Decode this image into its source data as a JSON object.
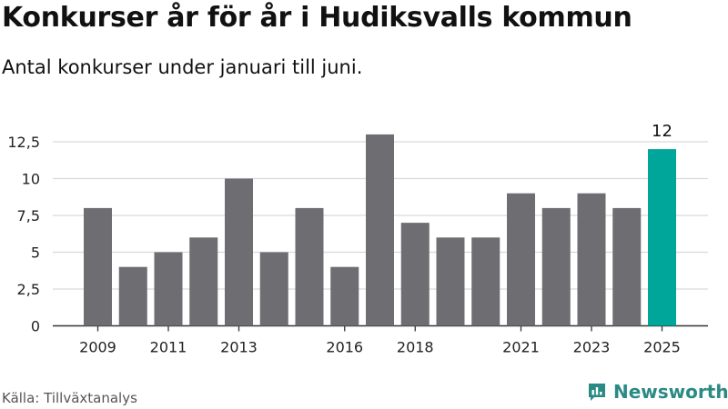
{
  "header": {
    "title": "Konkurser år för år i Hudiksvalls kommun",
    "subtitle": "Antal konkurser under januari till juni."
  },
  "footer": {
    "source": "Källa: Tillväxtanalys",
    "brand": "Newsworthy"
  },
  "colors": {
    "bar": "#6d6d72",
    "highlight": "#00a699",
    "grid": "#d9d9d9",
    "axis": "#333333",
    "brand": "#2a8a84"
  },
  "chart_data": {
    "type": "bar",
    "categories": [
      "2009",
      "2010",
      "2011",
      "2012",
      "2013",
      "2014",
      "2015",
      "2016",
      "2017",
      "2018",
      "2019",
      "2020",
      "2021",
      "2022",
      "2023",
      "2024",
      "2025"
    ],
    "values": [
      8,
      4,
      5,
      6,
      10,
      5,
      8,
      4,
      13,
      7,
      6,
      6,
      9,
      8,
      9,
      8,
      12
    ],
    "x_tick_labels": [
      "2009",
      "2011",
      "2013",
      "2016",
      "2018",
      "2021",
      "2023",
      "2025"
    ],
    "y_ticks": [
      0,
      2.5,
      5,
      7.5,
      10,
      12.5
    ],
    "y_tick_labels": [
      "0",
      "2,5",
      "5",
      "7,5",
      "10",
      "12,5"
    ],
    "ylim": [
      0,
      14
    ],
    "highlight_category": "2025",
    "data_labels": [
      {
        "category": "2025",
        "text": "12"
      }
    ],
    "grid": true,
    "xlabel": "",
    "ylabel": ""
  }
}
